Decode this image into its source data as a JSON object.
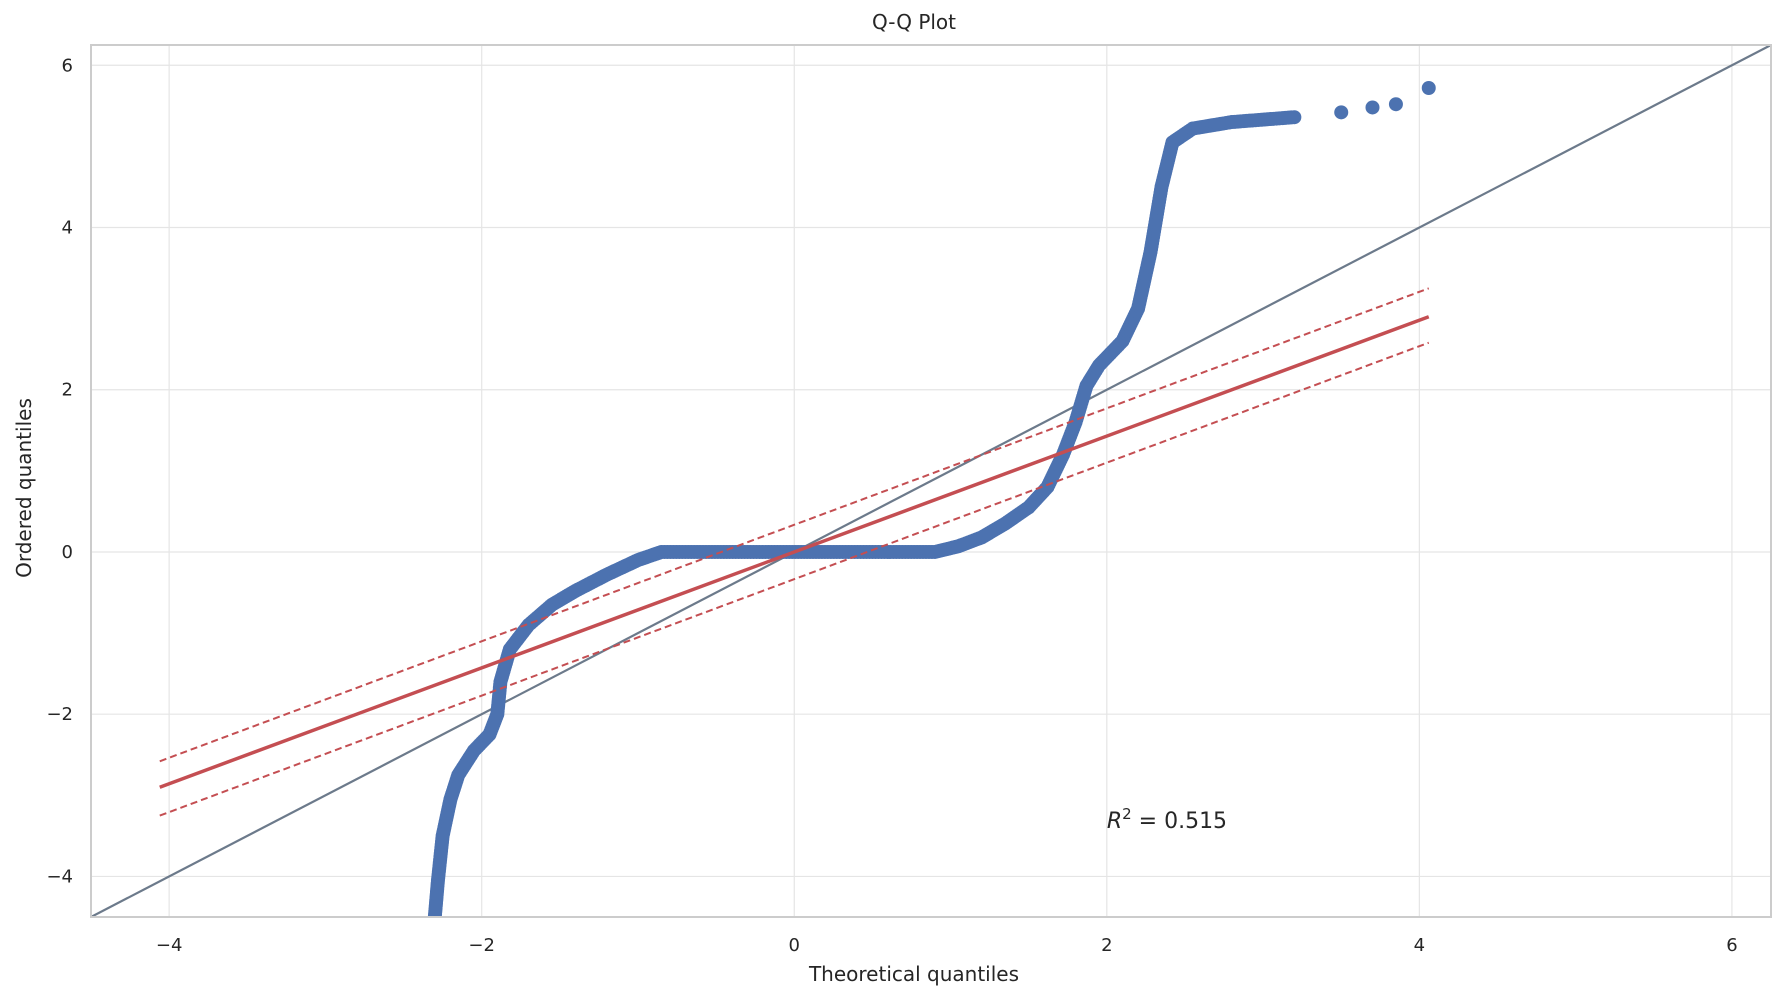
{
  "chart_data": {
    "type": "scatter",
    "title": "Q-Q Plot",
    "xlabel": "Theoretical quantiles",
    "ylabel": "Ordered quantiles",
    "xlim": [
      -4.5,
      6.25
    ],
    "ylim": [
      -4.5,
      6.25
    ],
    "xticks": [
      -4,
      -2,
      0,
      2,
      4,
      6
    ],
    "yticks": [
      -4,
      -2,
      0,
      2,
      4,
      6
    ],
    "xtick_labels": [
      "−4",
      "−2",
      "0",
      "2",
      "4",
      "6"
    ],
    "ytick_labels": [
      "−4",
      "−2",
      "0",
      "2",
      "4",
      "6"
    ],
    "grid": true,
    "annotation": {
      "r_symbol": "R",
      "superscript": "2",
      "equals": " = ",
      "value": "0.515",
      "position_data": [
        2.0,
        -3.4
      ]
    },
    "series": [
      {
        "type": "scatter",
        "color": "#4c72b0",
        "profile": [
          [
            -2.3,
            -4.5
          ],
          [
            -2.28,
            -4.05
          ],
          [
            -2.25,
            -3.5
          ],
          [
            -2.2,
            -3.05
          ],
          [
            -2.15,
            -2.75
          ],
          [
            -2.05,
            -2.45
          ],
          [
            -1.95,
            -2.25
          ],
          [
            -1.9,
            -2.0
          ],
          [
            -1.88,
            -1.6
          ],
          [
            -1.82,
            -1.2
          ],
          [
            -1.7,
            -0.9
          ],
          [
            -1.55,
            -0.65
          ],
          [
            -1.4,
            -0.48
          ],
          [
            -1.2,
            -0.28
          ],
          [
            -1.0,
            -0.1
          ],
          [
            -0.85,
            0.0
          ],
          [
            0.9,
            0.0
          ],
          [
            1.05,
            0.07
          ],
          [
            1.2,
            0.18
          ],
          [
            1.35,
            0.35
          ],
          [
            1.5,
            0.55
          ],
          [
            1.62,
            0.8
          ],
          [
            1.72,
            1.2
          ],
          [
            1.8,
            1.6
          ],
          [
            1.87,
            2.05
          ],
          [
            1.95,
            2.3
          ],
          [
            2.1,
            2.6
          ],
          [
            2.2,
            3.0
          ],
          [
            2.28,
            3.7
          ],
          [
            2.35,
            4.5
          ],
          [
            2.42,
            5.05
          ],
          [
            2.55,
            5.22
          ],
          [
            2.8,
            5.3
          ],
          [
            3.2,
            5.36
          ],
          [
            3.5,
            5.42
          ],
          [
            3.7,
            5.48
          ],
          [
            3.85,
            5.52
          ],
          [
            4.06,
            5.72
          ]
        ]
      },
      {
        "type": "line",
        "name": "",
        "color": "#c44e52",
        "x": [
          -4.06,
          4.06
        ],
        "y": [
          -2.9,
          2.9
        ]
      },
      {
        "type": "band",
        "color": "#c44e52",
        "upper_start": [
          -4.06,
          -2.58
        ],
        "upper_end": [
          4.06,
          3.25
        ],
        "lower_start": [
          -4.06,
          -3.25
        ],
        "lower_end": [
          4.06,
          2.58
        ]
      },
      {
        "type": "reference",
        "color": "#6c7a8b",
        "x": [
          -4.5,
          6.25
        ],
        "y": [
          -4.5,
          6.25
        ]
      }
    ]
  }
}
